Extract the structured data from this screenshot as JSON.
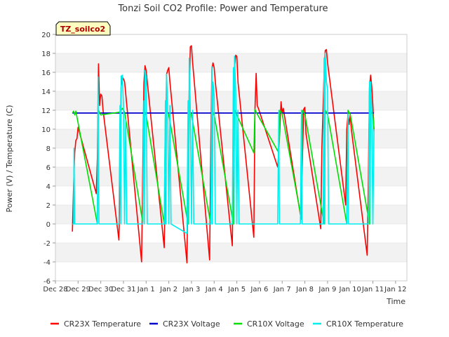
{
  "chart_data": {
    "type": "line",
    "title": "Tonzi Soil CO2 Profile: Power and Temperature",
    "xlabel": "Time",
    "ylabel": "Power (V) / Temperature (C)",
    "site_label": "TZ_soilco2",
    "ylim": [
      -6,
      20
    ],
    "xlim": [
      0,
      15.5
    ],
    "yticks": [
      -6,
      -4,
      -2,
      0,
      2,
      4,
      6,
      8,
      10,
      12,
      14,
      16,
      18,
      20
    ],
    "xticks": [
      {
        "x": 0,
        "label": "Dec 28"
      },
      {
        "x": 1,
        "label": "Dec 29"
      },
      {
        "x": 2,
        "label": "Dec 30"
      },
      {
        "x": 3,
        "label": "Dec 31"
      },
      {
        "x": 4,
        "label": "Jan 1"
      },
      {
        "x": 5,
        "label": "Jan 2"
      },
      {
        "x": 6,
        "label": "Jan 3"
      },
      {
        "x": 7,
        "label": "Jan 4"
      },
      {
        "x": 8,
        "label": "Jan 5"
      },
      {
        "x": 9,
        "label": "Jan 6"
      },
      {
        "x": 10,
        "label": "Jan 7"
      },
      {
        "x": 11,
        "label": "Jan 8"
      },
      {
        "x": 12,
        "label": "Jan 9"
      },
      {
        "x": 13,
        "label": "Jan 10"
      },
      {
        "x": 14,
        "label": "Jan 11"
      },
      {
        "x": 15,
        "label": "Jan 12"
      }
    ],
    "grid": "horizontal bands",
    "legend_position": "bottom",
    "series": [
      {
        "name": "CR23X Temperature",
        "color": "#ff0000",
        "points": [
          [
            0.75,
            -0.8
          ],
          [
            0.8,
            4
          ],
          [
            0.85,
            7.5
          ],
          [
            0.9,
            8.8
          ],
          [
            0.95,
            9
          ],
          [
            1.0,
            10.2
          ],
          [
            1.8,
            3.2
          ],
          [
            1.85,
            7
          ],
          [
            1.9,
            16.9
          ],
          [
            1.95,
            12.5
          ],
          [
            2.0,
            13.7
          ],
          [
            2.05,
            13.5
          ],
          [
            2.1,
            12
          ],
          [
            2.8,
            -1.7
          ],
          [
            2.85,
            5
          ],
          [
            2.9,
            14.5
          ],
          [
            2.95,
            15.5
          ],
          [
            3.0,
            15.3
          ],
          [
            3.05,
            15.0
          ],
          [
            3.8,
            -4.0
          ],
          [
            3.85,
            5
          ],
          [
            3.9,
            14.8
          ],
          [
            3.95,
            16.7
          ],
          [
            4.0,
            16.2
          ],
          [
            4.05,
            15
          ],
          [
            4.8,
            -2.5
          ],
          [
            4.85,
            6
          ],
          [
            4.9,
            15.8
          ],
          [
            4.95,
            16.2
          ],
          [
            5.0,
            16.5
          ],
          [
            5.05,
            15
          ],
          [
            5.8,
            -4.1
          ],
          [
            5.85,
            7
          ],
          [
            5.9,
            14
          ],
          [
            5.95,
            18.7
          ],
          [
            6.0,
            18.8
          ],
          [
            6.05,
            17
          ],
          [
            6.8,
            -3.8
          ],
          [
            6.85,
            8
          ],
          [
            6.9,
            16.3
          ],
          [
            6.95,
            17.0
          ],
          [
            7.0,
            16.5
          ],
          [
            7.05,
            15
          ],
          [
            7.8,
            -2.3
          ],
          [
            7.85,
            7
          ],
          [
            7.9,
            16.5
          ],
          [
            7.95,
            17.8
          ],
          [
            8.0,
            17.7
          ],
          [
            8.05,
            15
          ],
          [
            8.75,
            -1.4
          ],
          [
            8.8,
            12
          ],
          [
            8.85,
            15.9
          ],
          [
            8.9,
            12.5
          ],
          [
            8.95,
            12.2
          ],
          [
            9.8,
            6
          ],
          [
            9.85,
            7.5
          ],
          [
            9.95,
            12.9
          ],
          [
            10.0,
            11.7
          ],
          [
            10.05,
            12.2
          ],
          [
            10.8,
            1
          ],
          [
            10.85,
            3
          ],
          [
            10.95,
            12.1
          ],
          [
            11.0,
            12.3
          ],
          [
            11.05,
            9.5
          ],
          [
            11.7,
            -0.5
          ],
          [
            11.75,
            8
          ],
          [
            11.85,
            16
          ],
          [
            11.9,
            18.3
          ],
          [
            11.95,
            18.4
          ],
          [
            12.0,
            17
          ],
          [
            12.8,
            2
          ],
          [
            12.85,
            10
          ],
          [
            12.9,
            11.5
          ],
          [
            12.95,
            10.5
          ],
          [
            13.0,
            11.5
          ],
          [
            13.05,
            10
          ],
          [
            13.75,
            -3.3
          ],
          [
            13.8,
            5
          ],
          [
            13.85,
            14.5
          ],
          [
            13.9,
            15.7
          ],
          [
            13.95,
            14.5
          ],
          [
            14.0,
            12.5
          ],
          [
            14.05,
            9.8
          ]
        ]
      },
      {
        "name": "CR23X Voltage",
        "color": "#0000cc",
        "points": [
          [
            0.75,
            11.7
          ],
          [
            14.05,
            11.7
          ]
        ]
      },
      {
        "name": "CR10X Voltage",
        "color": "#00e000",
        "points": [
          [
            0.75,
            11.7
          ],
          [
            0.8,
            11.9
          ],
          [
            0.85,
            11.5
          ],
          [
            0.9,
            11.9
          ],
          [
            1.85,
            0
          ],
          [
            1.9,
            12.0
          ],
          [
            2.0,
            11.5
          ],
          [
            2.85,
            11.8
          ],
          [
            2.95,
            12.2
          ],
          [
            3.05,
            11.8
          ],
          [
            3.85,
            0.2
          ],
          [
            3.9,
            12.0
          ],
          [
            4.0,
            11.5
          ],
          [
            4.8,
            0
          ],
          [
            4.85,
            12.0
          ],
          [
            5.0,
            11.5
          ],
          [
            5.85,
            0
          ],
          [
            5.9,
            12.0
          ],
          [
            6.0,
            11.5
          ],
          [
            6.85,
            0
          ],
          [
            6.9,
            12.0
          ],
          [
            7.0,
            11.5
          ],
          [
            7.85,
            0
          ],
          [
            7.9,
            12.0
          ],
          [
            8.0,
            11.5
          ],
          [
            8.75,
            7.5
          ],
          [
            8.8,
            12.1
          ],
          [
            8.85,
            11.8
          ],
          [
            9.85,
            7.5
          ],
          [
            9.9,
            12.0
          ],
          [
            10.0,
            11.6
          ],
          [
            10.85,
            0.5
          ],
          [
            10.9,
            12.0
          ],
          [
            11.0,
            11.6
          ],
          [
            11.85,
            0
          ],
          [
            11.9,
            12.0
          ],
          [
            12.0,
            11.6
          ],
          [
            12.85,
            0
          ],
          [
            12.9,
            12.0
          ],
          [
            13.0,
            11.6
          ],
          [
            13.85,
            0
          ],
          [
            13.9,
            12.0
          ],
          [
            14.0,
            11.6
          ],
          [
            14.05,
            10
          ]
        ]
      },
      {
        "name": "CR10X Temperature",
        "color": "#00eeee",
        "points": [
          [
            0.75,
            0
          ],
          [
            0.8,
            0
          ],
          [
            0.82,
            8
          ],
          [
            0.85,
            0
          ],
          [
            1.85,
            0
          ],
          [
            1.88,
            15.5
          ],
          [
            1.92,
            0
          ],
          [
            2.8,
            0
          ],
          [
            2.85,
            12.5
          ],
          [
            2.88,
            0
          ],
          [
            2.9,
            15.6
          ],
          [
            2.95,
            15.7
          ],
          [
            3.0,
            12.5
          ],
          [
            3.05,
            0
          ],
          [
            3.1,
            11
          ],
          [
            3.15,
            0
          ],
          [
            3.85,
            0
          ],
          [
            3.9,
            13
          ],
          [
            3.92,
            0
          ],
          [
            3.95,
            16.2
          ],
          [
            4.0,
            15.5
          ],
          [
            4.05,
            0
          ],
          [
            4.8,
            0
          ],
          [
            4.85,
            13
          ],
          [
            4.88,
            0
          ],
          [
            4.9,
            15.8
          ],
          [
            4.95,
            12.5
          ],
          [
            5.0,
            0
          ],
          [
            5.05,
            12.5
          ],
          [
            5.1,
            0
          ],
          [
            5.8,
            -1
          ],
          [
            5.85,
            13
          ],
          [
            5.88,
            0
          ],
          [
            5.9,
            17.5
          ],
          [
            5.95,
            12
          ],
          [
            6.0,
            0
          ],
          [
            6.05,
            12
          ],
          [
            6.1,
            0
          ],
          [
            6.85,
            0
          ],
          [
            6.9,
            16.6
          ],
          [
            6.92,
            0
          ],
          [
            6.95,
            15.0
          ],
          [
            7.0,
            13.5
          ],
          [
            7.05,
            0
          ],
          [
            7.8,
            0
          ],
          [
            7.85,
            16.5
          ],
          [
            7.88,
            0
          ],
          [
            7.9,
            17.7
          ],
          [
            7.95,
            14
          ],
          [
            8.0,
            0
          ],
          [
            8.05,
            12
          ],
          [
            8.1,
            0
          ],
          [
            8.75,
            0
          ],
          [
            9.8,
            0
          ],
          [
            9.85,
            12
          ],
          [
            9.88,
            0
          ],
          [
            10.8,
            0
          ],
          [
            10.85,
            12
          ],
          [
            10.88,
            0
          ],
          [
            11.8,
            0
          ],
          [
            11.85,
            17.5
          ],
          [
            11.88,
            0
          ],
          [
            11.9,
            18.0
          ],
          [
            11.95,
            15
          ],
          [
            12.0,
            14.2
          ],
          [
            12.05,
            0
          ],
          [
            12.85,
            0
          ],
          [
            12.9,
            11.5
          ],
          [
            12.92,
            0
          ],
          [
            13.8,
            0
          ],
          [
            13.85,
            15.0
          ],
          [
            13.88,
            0
          ],
          [
            13.9,
            15.0
          ],
          [
            13.95,
            12
          ],
          [
            14.0,
            0
          ],
          [
            14.05,
            10
          ]
        ]
      }
    ]
  }
}
